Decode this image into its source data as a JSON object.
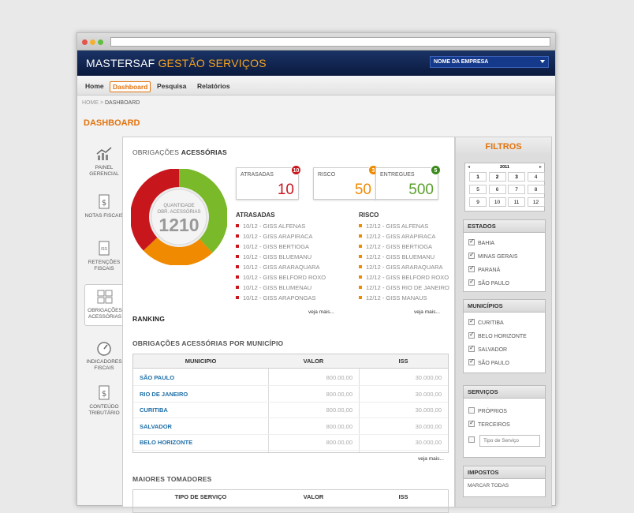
{
  "app": {
    "brand_main": "MASTERSAF",
    "brand_sub": "GESTÃO SERVIÇOS",
    "company_select": "NOME DA EMPRESA"
  },
  "nav": [
    {
      "label": "Home"
    },
    {
      "label": "Dashboard"
    },
    {
      "label": "Pesquisa"
    },
    {
      "label": "Relatórios"
    }
  ],
  "breadcrumb": {
    "home": "HOME",
    "sep": " > ",
    "current": "DASHBOARD"
  },
  "page_title": "DASHBOARD",
  "sidebar": [
    {
      "label": "PAINEL GERENCIAL",
      "icon": "chart-icon"
    },
    {
      "label": "NOTAS FISCAIS",
      "icon": "dollar-document-icon"
    },
    {
      "label": "RETENÇÕES FISCAIS",
      "icon": "iss-document-icon"
    },
    {
      "label": "OBRIGAÇÕES ACESSÓRIAS",
      "icon": "forms-icon"
    },
    {
      "label": "INDICADORES FISCAIS",
      "icon": "gauge-icon"
    },
    {
      "label": "CONTEÚDO TRIBUTÁRIO",
      "icon": "document-dollar-icon"
    }
  ],
  "obrigacoes": {
    "title_a": "OBRIGAÇÕES ",
    "title_b": "ACESSÓRIAS",
    "gauge_label1": "QUANTIDADE",
    "gauge_label2": "OBR. ACESSÓRIAS",
    "gauge_value": "1210",
    "gauge_fractions": {
      "red": 0.37,
      "orange": 0.25,
      "green": 0.38
    },
    "colors": {
      "red": "#c8161d",
      "orange": "#f08a00",
      "green": "#7ab929"
    },
    "cards": [
      {
        "label": "ATRASADAS",
        "value": "10",
        "badge": "10",
        "color": "#c8161d"
      },
      {
        "label": "RISCO",
        "value": "50",
        "badge": "3",
        "color": "#f08a00"
      },
      {
        "label": "ENTREGUES",
        "value": "500",
        "badge": "5",
        "color": "#5aa02c"
      }
    ],
    "atrasadas_title": "ATRASADAS",
    "atrasadas": [
      "10/12 - GISS ALFENAS",
      "10/12 - GISS ARAPIRACA",
      "10/12 - GISS BERTIOGA",
      "10/12 - GISS BLUEMANU",
      "10/12 - GISS ARARAQUARA",
      "10/12 - GISS BELFORD ROXO",
      "10/12 - GISS BLUMENAU",
      "10/12 - GISS ARAPONGAS"
    ],
    "risco_title": "RISCO",
    "risco": [
      "12/12 - GISS ALFENAS",
      "12/12 - GISS ARAPIRACA",
      "12/12 - GISS BERTIOGA",
      "12/12 - GISS BLUEMANU",
      "12/12 - GISS ARARAQUARA",
      "12/12 - GISS BELFORD ROXO",
      "12/12 - GISS RIO DE JANEIRO",
      "12/12 - GISS MANAUS"
    ],
    "veja_mais": "veja mais..."
  },
  "ranking": {
    "title": "RANKING"
  },
  "municipio_table": {
    "title": "OBRIGAÇÕES ACESSÓRIAS POR MUNICÍPIO",
    "headers": [
      "MUNICIPIO",
      "VALOR",
      "ISS"
    ],
    "rows": [
      [
        "SÃO PAULO",
        "800.00,00",
        "30.000,00"
      ],
      [
        "RIO DE JANEIRO",
        "800.00,00",
        "30.000,00"
      ],
      [
        "CURITIBA",
        "800.00,00",
        "30.000,00"
      ],
      [
        "SALVADOR",
        "800.00,00",
        "30.000,00"
      ],
      [
        "BELO HORIZONTE",
        "800.00,00",
        "30.000,00"
      ]
    ],
    "veja_mais": "veja mais..."
  },
  "tomadores": {
    "title": "MAIORES TOMADORES",
    "headers": [
      "TIPO DE SERVIÇO",
      "VALOR",
      "ISS"
    ]
  },
  "filters": {
    "title": "FILTROS",
    "calendar": {
      "year": "2011",
      "prev": "◂",
      "next": "▸",
      "months": [
        "1",
        "2",
        "3",
        "4",
        "5",
        "6",
        "7",
        "8",
        "9",
        "10",
        "11",
        "12"
      ],
      "bold": [
        "1",
        "2",
        "3"
      ]
    },
    "estados": {
      "title": "ESTADOS",
      "items": [
        "BAHIA",
        "MINAS GERAIS",
        "PARANÁ",
        "SÃO PAULO"
      ]
    },
    "municipios": {
      "title": "MUNICÍPIOS",
      "items": [
        "CURITIBA",
        "BELO HORIZONTE",
        "SALVADOR",
        "SÃO PAULO"
      ]
    },
    "servicos": {
      "title": "SERVIÇOS",
      "items": [
        {
          "label": "PRÓPRIOS",
          "checked": false
        },
        {
          "label": "TERCEIROS",
          "checked": true
        }
      ],
      "placeholder": "Tipo de Serviço"
    },
    "impostos": {
      "title": "IMPOSTOS",
      "marcar": "MARCAR TODAS"
    }
  }
}
